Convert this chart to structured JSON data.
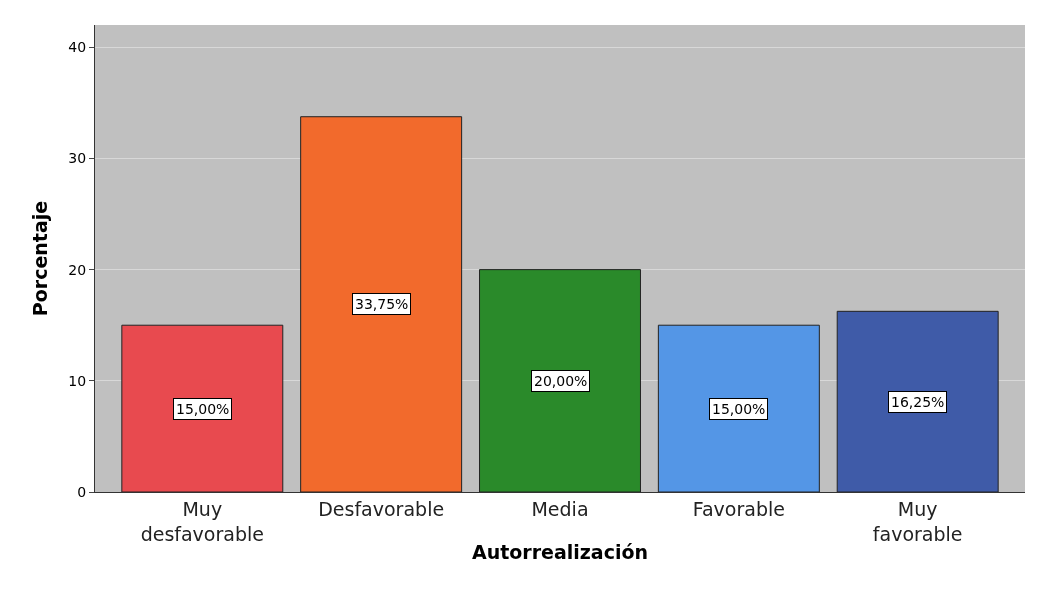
{
  "chart_data": {
    "type": "bar",
    "xlabel": "Autorrealización",
    "ylabel": "Porcentaje",
    "categories": [
      "Muy desfavorable",
      "Desfavorable",
      "Media",
      "Favorable",
      "Muy favorable"
    ],
    "values": [
      15,
      33.75,
      20,
      15,
      16.25
    ],
    "colors": [
      "#e84a4f",
      "#f26a2c",
      "#2a8a2a",
      "#5496e6",
      "#3f5ba8"
    ],
    "value_labels": [
      "15,00%",
      "33,75%",
      "20,00%",
      "15,00%",
      "16,25%"
    ],
    "ylim": [
      0,
      42
    ],
    "yticks": [
      0,
      10,
      20,
      30,
      40
    ],
    "grid": "y"
  }
}
